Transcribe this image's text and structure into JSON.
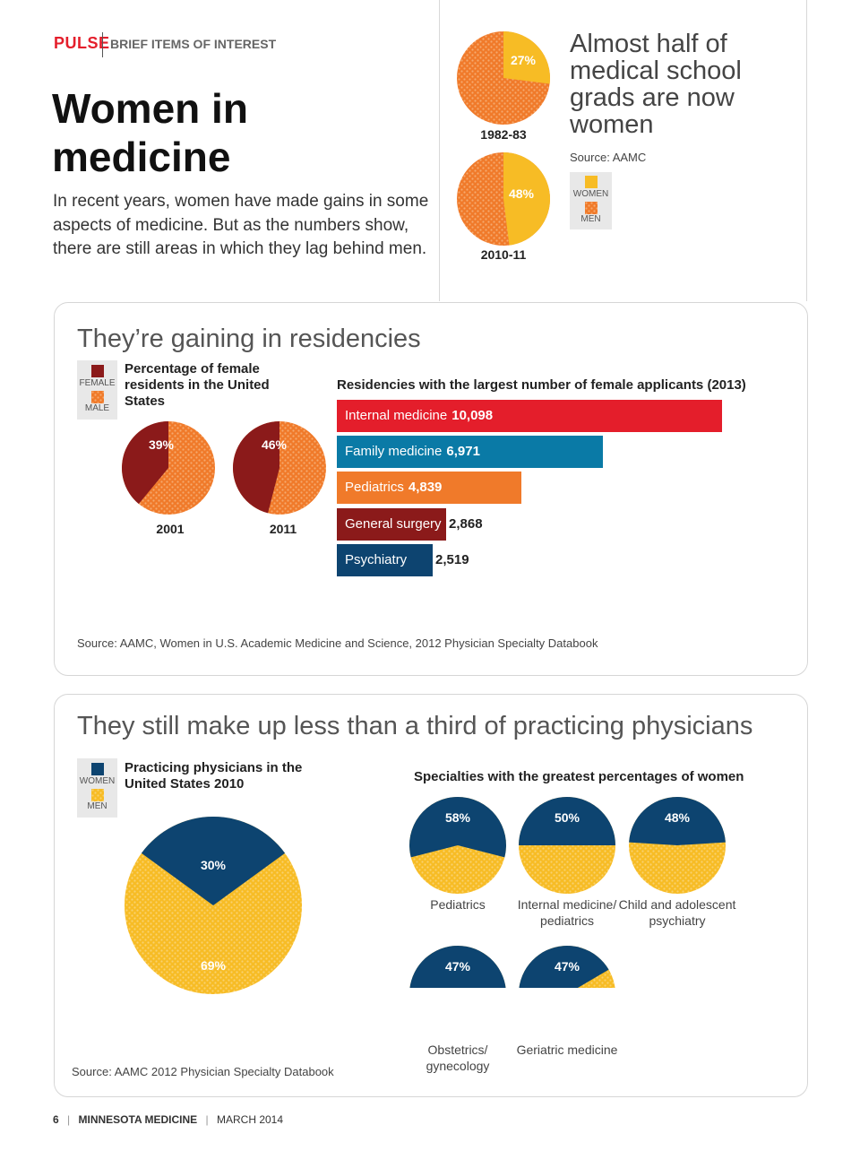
{
  "header": {
    "section": "PULSE",
    "tagline": "BRIEF ITEMS OF INTEREST"
  },
  "headline": "Women in medicine",
  "intro": "In recent years, women have made gains in some aspects of medicine. But as the numbers show, there are still areas in which they lag behind men.",
  "colors": {
    "red": "#e41e2b",
    "dark_red": "#8b1a1a",
    "orange": "#f07a2a",
    "blue": "#0a7aa6",
    "navy": "#0d4470",
    "gold": "#f7bc25"
  },
  "grads": {
    "title": "Almost half of medical school grads are now women",
    "source": "Source: AAMC",
    "legend": {
      "women": "WOMEN",
      "men": "MEN"
    }
  },
  "residencies": {
    "title": "They’re gaining in residencies",
    "pie_subtitle": "Percentage of female residents in the United States",
    "legend": {
      "female": "FEMALE",
      "male": "MALE"
    },
    "bar_subtitle": "Residencies with the largest number of female applicants (2013)",
    "source": "Source: AAMC, Women in U.S. Academic Medicine and Science, 2012 Physician Specialty Databook"
  },
  "physicians": {
    "title": "They still make up less than a third of practicing physicians",
    "pie_subtitle": "Practicing physicians in the United States 2010",
    "legend": {
      "women": "WOMEN",
      "men": "MEN"
    },
    "spec_subtitle": "Specialties with the greatest percentages of women",
    "source": "Source: AAMC 2012 Physician Specialty Databook"
  },
  "footer": {
    "page": "6",
    "publication": "MINNESOTA MEDICINE",
    "date": "MARCH 2014"
  },
  "chart_data": [
    {
      "type": "pie",
      "title": "",
      "categories": [
        "Women",
        "Men"
      ],
      "series": [
        {
          "name": "1982-83",
          "values": [
            27,
            73
          ]
        },
        {
          "name": "2010-11",
          "values": [
            48,
            52
          ]
        }
      ],
      "labels": [
        "27%",
        "48%"
      ],
      "years": [
        "1982-83",
        "2010-11"
      ]
    },
    {
      "type": "pie",
      "title": "Percentage of female residents in the United States",
      "categories": [
        "Female",
        "Male"
      ],
      "series": [
        {
          "name": "2001",
          "values": [
            39,
            61
          ]
        },
        {
          "name": "2011",
          "values": [
            46,
            54
          ]
        }
      ],
      "labels": [
        "39%",
        "46%"
      ],
      "years": [
        "2001",
        "2011"
      ]
    },
    {
      "type": "bar",
      "title": "Residencies with the largest number of female applicants (2013)",
      "categories": [
        "Internal medicine",
        "Family medicine",
        "Pediatrics",
        "General surgery",
        "Psychiatry"
      ],
      "values": [
        10098,
        6971,
        4839,
        2868,
        2519
      ],
      "value_labels": [
        "10,098",
        "6,971",
        "4,839",
        "2,868",
        "2,519"
      ],
      "colors": [
        "#e41e2b",
        "#0a7aa6",
        "#f07a2a",
        "#8b1a1a",
        "#0d4470"
      ]
    },
    {
      "type": "pie",
      "title": "Practicing physicians in the United States 2010",
      "categories": [
        "Women",
        "Men"
      ],
      "values": [
        30,
        69
      ],
      "labels": [
        "30%",
        "69%"
      ]
    },
    {
      "type": "pie",
      "title": "Specialties with the greatest percentages of women",
      "categories": [
        "Pediatrics",
        "Internal medicine/ pediatrics",
        "Child and adolescent psychiatry",
        "Obstetrics/ gynecology",
        "Geriatric medicine"
      ],
      "values": [
        58,
        50,
        48,
        47,
        47
      ],
      "labels": [
        "58%",
        "50%",
        "48%",
        "47%",
        "47%"
      ]
    }
  ]
}
